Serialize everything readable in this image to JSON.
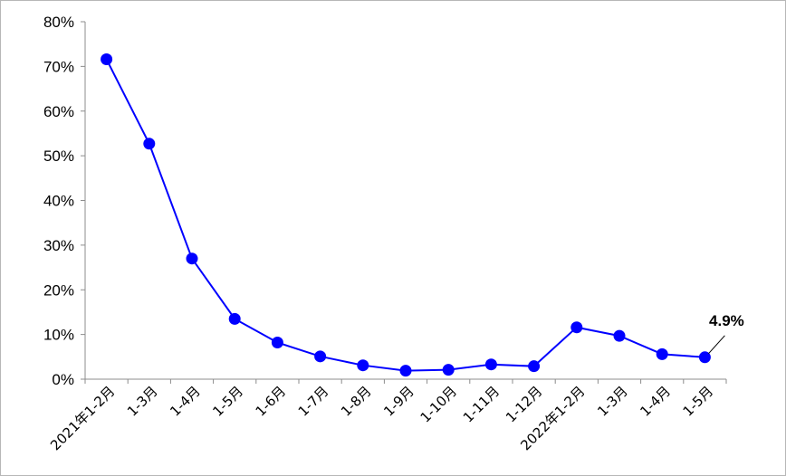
{
  "chart_data": {
    "type": "line",
    "categories": [
      "2021年1-2月",
      "1-3月",
      "1-4月",
      "1-5月",
      "1-6月",
      "1-7月",
      "1-8月",
      "1-9月",
      "1-10月",
      "1-11月",
      "1-12月",
      "2022年1-2月",
      "1-3月",
      "1-4月",
      "1-5月"
    ],
    "series": [
      {
        "values": [
          71.6,
          52.7,
          27.0,
          13.5,
          8.2,
          5.1,
          3.1,
          1.9,
          2.1,
          3.3,
          2.9,
          11.6,
          9.7,
          5.6,
          4.9
        ],
        "color": "#0000ff"
      }
    ],
    "ylim": [
      0,
      80
    ],
    "yticks": [
      0,
      10,
      20,
      30,
      40,
      50,
      60,
      70,
      80
    ],
    "ytick_labels": [
      "0%",
      "10%",
      "20%",
      "30%",
      "40%",
      "50%",
      "60%",
      "70%",
      "80%"
    ],
    "annotations": [
      {
        "index": 14,
        "text": "4.9%"
      }
    ],
    "grid": false,
    "legend": "none",
    "title": "",
    "xlabel": "",
    "ylabel": ""
  }
}
